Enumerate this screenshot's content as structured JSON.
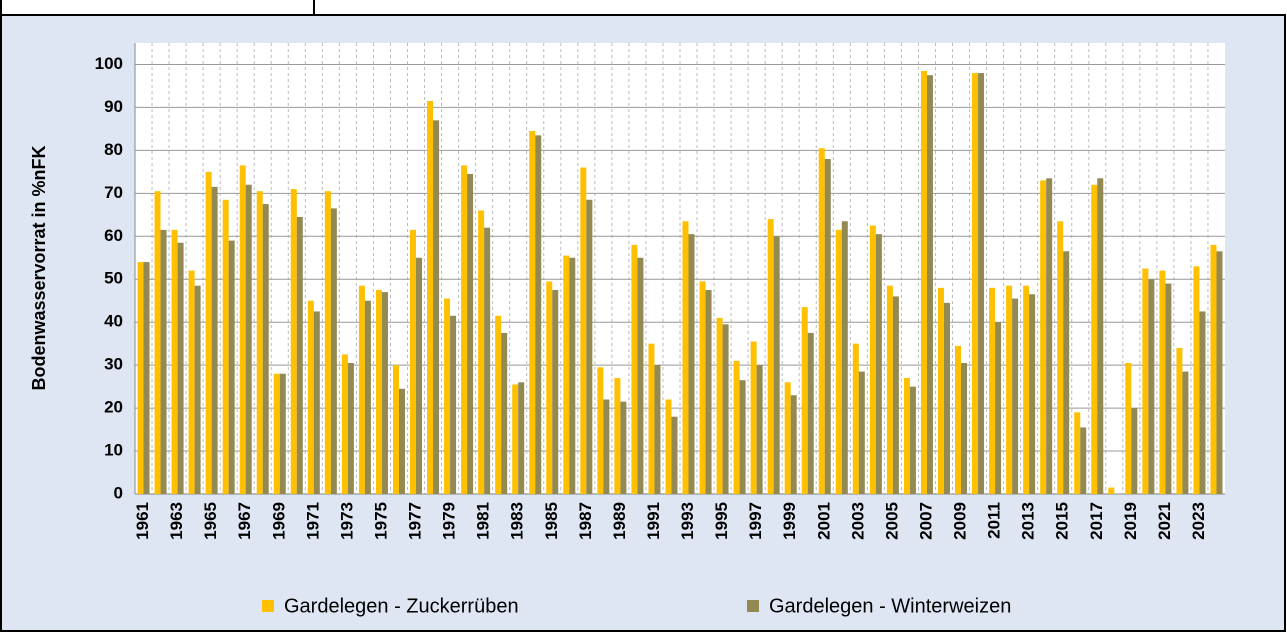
{
  "chart_data": {
    "type": "bar",
    "y_label": "Bodenwasservorrat in %nFK",
    "categories": [
      "1961",
      null,
      "1963",
      null,
      "1965",
      null,
      "1967",
      null,
      "1969",
      null,
      "1971",
      null,
      "1973",
      null,
      "1975",
      null,
      "1977",
      null,
      "1979",
      null,
      "1981",
      null,
      "1983",
      null,
      "1985",
      null,
      "1987",
      null,
      "1989",
      null,
      "1991",
      null,
      "1993",
      null,
      "1995",
      null,
      "1997",
      null,
      "1999",
      null,
      "2001",
      null,
      "2003",
      null,
      "2005",
      null,
      "2007",
      null,
      "2009",
      null,
      "2011",
      null,
      "2013",
      null,
      "2015",
      null,
      "2017",
      null,
      "2019",
      null,
      "2021",
      null,
      "2023",
      null
    ],
    "series": [
      {
        "name": "Gardelegen - Zuckerrüben",
        "color": "#ffc000",
        "values": [
          54,
          70.5,
          61.5,
          52,
          75,
          68.5,
          76.5,
          70.5,
          28,
          71,
          45,
          70.5,
          32.5,
          48.5,
          47.5,
          30,
          61.5,
          91.5,
          45.5,
          76.5,
          66,
          41.5,
          25.5,
          84.5,
          49.5,
          55.5,
          76,
          29.5,
          27,
          58,
          35,
          22,
          63.5,
          49.5,
          41,
          31,
          35.5,
          64,
          26,
          43.5,
          80.5,
          61.5,
          35,
          62.5,
          48.5,
          27,
          98.5,
          48,
          34.5,
          98,
          48,
          48.5,
          48.5,
          73,
          63.5,
          19,
          72,
          1.5,
          30.5,
          52.5,
          52,
          34,
          53,
          58
        ]
      },
      {
        "name": "Gardelegen - Winterweizen",
        "color": "#938953",
        "values": [
          54,
          61.5,
          58.5,
          48.5,
          71.5,
          59,
          72,
          67.5,
          28,
          64.5,
          42.5,
          66.5,
          30.5,
          45,
          47,
          24.5,
          55,
          87,
          41.5,
          74.5,
          62,
          37.5,
          26,
          83.5,
          47.5,
          55,
          68.5,
          22,
          21.5,
          55,
          30,
          18,
          60.5,
          47.5,
          39.5,
          26.5,
          30,
          60,
          23,
          37.5,
          78,
          63.5,
          28.5,
          60.5,
          46,
          25,
          97.5,
          44.5,
          30.5,
          98,
          40,
          45.5,
          46.5,
          73.5,
          56.5,
          15.5,
          73.5,
          0,
          20,
          50,
          49,
          28.5,
          42.5,
          56.5
        ]
      }
    ],
    "ylim": [
      0,
      105
    ],
    "yticks": [
      0,
      10,
      20,
      30,
      40,
      50,
      60,
      70,
      80,
      90,
      100
    ],
    "grid": true
  }
}
